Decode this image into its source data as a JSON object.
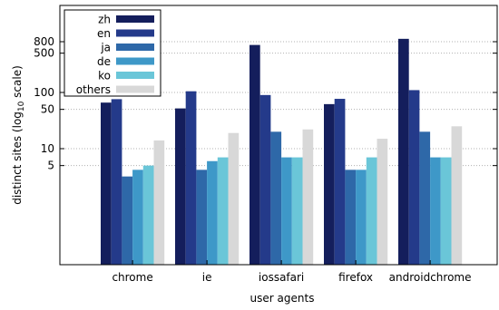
{
  "chart_data": {
    "type": "bar",
    "xlabel": "user agents",
    "ylabel": {
      "prefix": "distinct sites (log",
      "subscript": "10",
      "suffix": " scale)"
    },
    "yscale": "log10",
    "ylim": [
      0.01,
      2000
    ],
    "yticks": [
      5,
      10,
      50,
      100,
      500,
      800
    ],
    "grid": "horizontal dotted at major ticks",
    "legend_position": "top-left",
    "categories": [
      "chrome",
      "ie",
      "iossafari",
      "firefox",
      "androidchrome"
    ],
    "series": [
      {
        "name": "zh",
        "color": "#141e5c",
        "values": [
          66,
          52,
          700,
          62,
          900
        ]
      },
      {
        "name": "en",
        "color": "#243a8a",
        "values": [
          76,
          105,
          90,
          77,
          110
        ]
      },
      {
        "name": "ja",
        "color": "#2e68a8",
        "values": [
          3.2,
          4.2,
          20,
          4.2,
          20
        ]
      },
      {
        "name": "de",
        "color": "#3e98c8",
        "values": [
          4.2,
          6,
          7,
          4.2,
          7
        ]
      },
      {
        "name": "ko",
        "color": "#6ac6d8",
        "values": [
          5,
          7,
          7,
          7,
          7
        ]
      },
      {
        "name": "others",
        "color": "#d8d8d8",
        "values": [
          14,
          19,
          22,
          15,
          25
        ]
      }
    ]
  }
}
